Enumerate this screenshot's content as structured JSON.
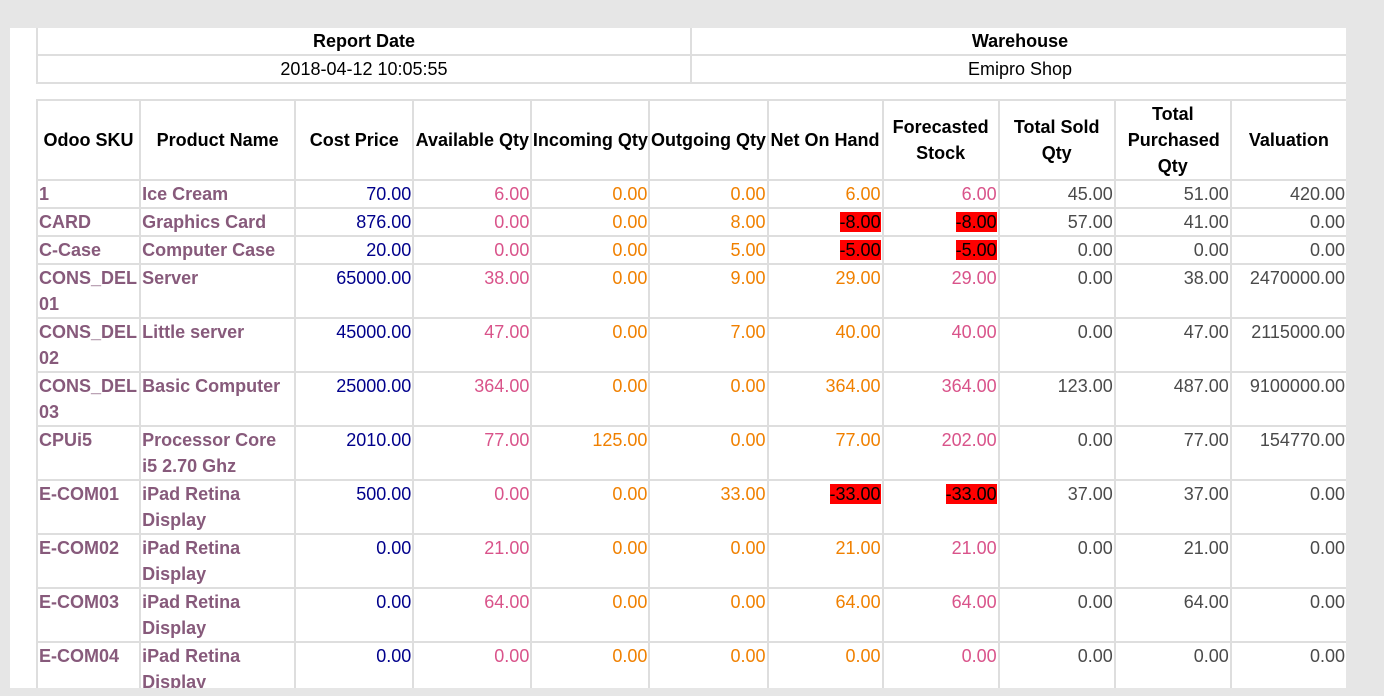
{
  "report": {
    "date_label": "Report Date",
    "warehouse_label": "Warehouse",
    "date_value": "2018-04-12 10:05:55",
    "warehouse_value": "Emipro Shop"
  },
  "columns": [
    "Odoo SKU",
    "Product Name",
    "Cost Price",
    "Available Qty",
    "Incoming Qty",
    "Outgoing Qty",
    "Net On Hand",
    "Forecasted Stock",
    "Total Sold Qty",
    "Total Purchased Qty",
    "Valuation"
  ],
  "colors": {
    "sku_and_name": "#875a7b",
    "cost": "#00008b",
    "available_forecast": "#d9538a",
    "incoming_outgoing_onhand": "#f08000",
    "negative_highlight": "#ff0000",
    "totals": "#4a4a4a"
  },
  "rows": [
    {
      "sku": "1",
      "name": "Ice Cream",
      "cost": "70.00",
      "available": "6.00",
      "incoming": "0.00",
      "outgoing": "0.00",
      "net_on_hand": "6.00",
      "forecasted": "6.00",
      "sold": "45.00",
      "purchased": "51.00",
      "valuation": "420.00"
    },
    {
      "sku": "CARD",
      "name": "Graphics Card",
      "cost": "876.00",
      "available": "0.00",
      "incoming": "0.00",
      "outgoing": "8.00",
      "net_on_hand": "-8.00",
      "forecasted": "-8.00",
      "sold": "57.00",
      "purchased": "41.00",
      "valuation": "0.00"
    },
    {
      "sku": "C-Case",
      "name": "Computer Case",
      "cost": "20.00",
      "available": "0.00",
      "incoming": "0.00",
      "outgoing": "5.00",
      "net_on_hand": "-5.00",
      "forecasted": "-5.00",
      "sold": "0.00",
      "purchased": "0.00",
      "valuation": "0.00"
    },
    {
      "sku": "CONS_DEL 01",
      "name": "Server",
      "cost": "65000.00",
      "available": "38.00",
      "incoming": "0.00",
      "outgoing": "9.00",
      "net_on_hand": "29.00",
      "forecasted": "29.00",
      "sold": "0.00",
      "purchased": "38.00",
      "valuation": "2470000.00"
    },
    {
      "sku": "CONS_DEL 02",
      "name": "Little server",
      "cost": "45000.00",
      "available": "47.00",
      "incoming": "0.00",
      "outgoing": "7.00",
      "net_on_hand": "40.00",
      "forecasted": "40.00",
      "sold": "0.00",
      "purchased": "47.00",
      "valuation": "2115000.00"
    },
    {
      "sku": "CONS_DEL 03",
      "name": "Basic Computer",
      "cost": "25000.00",
      "available": "364.00",
      "incoming": "0.00",
      "outgoing": "0.00",
      "net_on_hand": "364.00",
      "forecasted": "364.00",
      "sold": "123.00",
      "purchased": "487.00",
      "valuation": "9100000.00"
    },
    {
      "sku": "CPUi5",
      "name": "Processor Core i5 2.70 Ghz",
      "cost": "2010.00",
      "available": "77.00",
      "incoming": "125.00",
      "outgoing": "0.00",
      "net_on_hand": "77.00",
      "forecasted": "202.00",
      "sold": "0.00",
      "purchased": "77.00",
      "valuation": "154770.00"
    },
    {
      "sku": "E-COM01",
      "name": "iPad Retina Display",
      "cost": "500.00",
      "available": "0.00",
      "incoming": "0.00",
      "outgoing": "33.00",
      "net_on_hand": "-33.00",
      "forecasted": "-33.00",
      "sold": "37.00",
      "purchased": "37.00",
      "valuation": "0.00"
    },
    {
      "sku": "E-COM02",
      "name": "iPad Retina Display",
      "cost": "0.00",
      "available": "21.00",
      "incoming": "0.00",
      "outgoing": "0.00",
      "net_on_hand": "21.00",
      "forecasted": "21.00",
      "sold": "0.00",
      "purchased": "21.00",
      "valuation": "0.00"
    },
    {
      "sku": "E-COM03",
      "name": "iPad Retina Display",
      "cost": "0.00",
      "available": "64.00",
      "incoming": "0.00",
      "outgoing": "0.00",
      "net_on_hand": "64.00",
      "forecasted": "64.00",
      "sold": "0.00",
      "purchased": "64.00",
      "valuation": "0.00"
    },
    {
      "sku": "E-COM04",
      "name": "iPad Retina Display",
      "cost": "0.00",
      "available": "0.00",
      "incoming": "0.00",
      "outgoing": "0.00",
      "net_on_hand": "0.00",
      "forecasted": "0.00",
      "sold": "0.00",
      "purchased": "0.00",
      "valuation": "0.00"
    }
  ]
}
